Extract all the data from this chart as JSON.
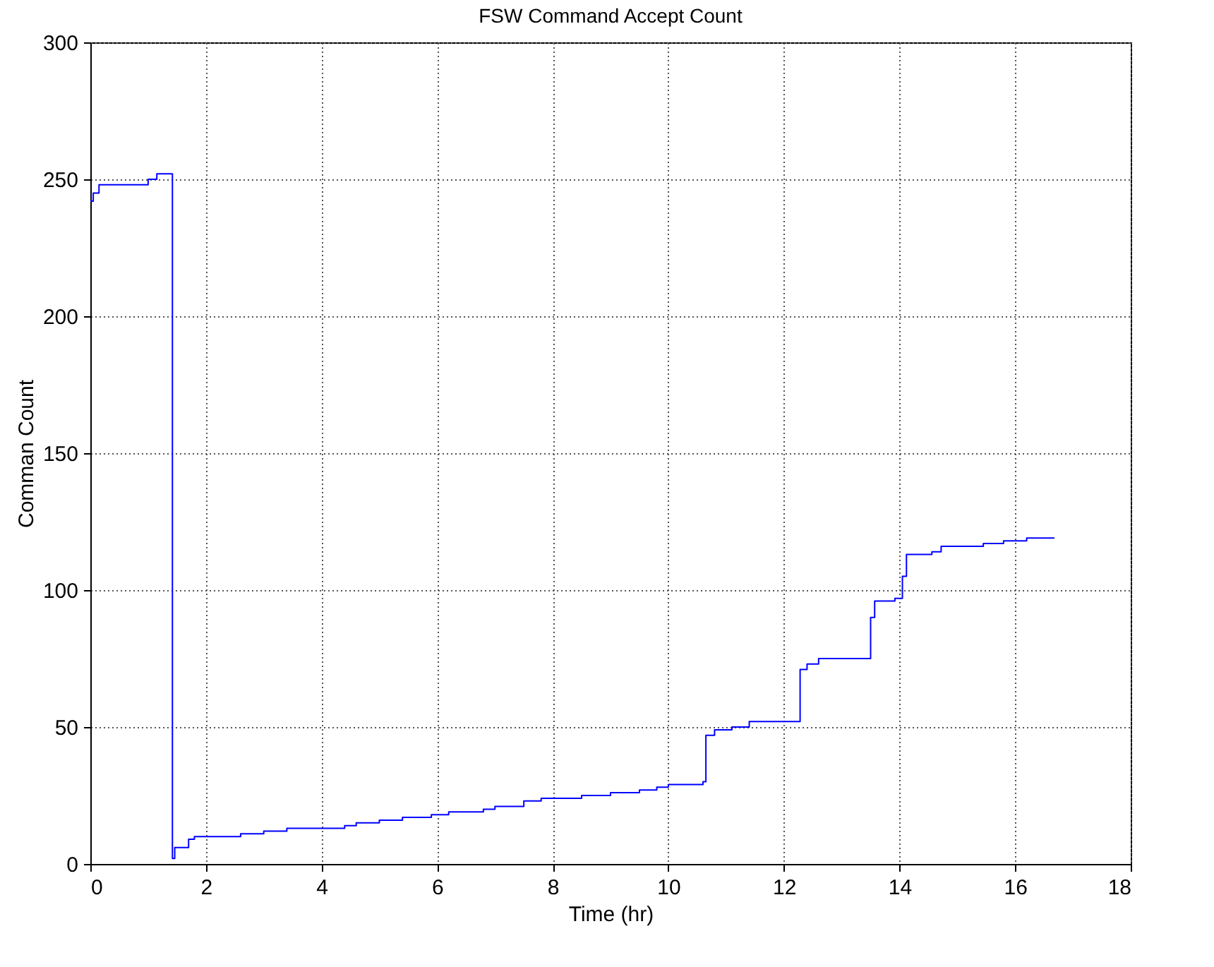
{
  "chart_data": {
    "type": "step",
    "title": "FSW Command Accept Count",
    "xlabel": "Time (hr)",
    "ylabel": "Comman Count",
    "x": [
      0,
      0.05,
      0.15,
      1.0,
      1.15,
      1.42,
      1.46,
      1.7,
      1.8,
      2.6,
      3.0,
      3.4,
      4.4,
      4.6,
      5.0,
      5.4,
      5.9,
      6.2,
      6.8,
      7.0,
      7.5,
      7.8,
      8.5,
      9.0,
      9.5,
      9.8,
      10.0,
      10.6,
      10.65,
      10.8,
      11.1,
      11.4,
      12.28,
      12.4,
      12.6,
      13.5,
      13.57,
      13.92,
      14.05,
      14.12,
      14.56,
      14.72,
      15.45,
      15.8,
      16.2,
      16.68
    ],
    "series": [
      {
        "color": "#0000ff",
        "values": [
          242,
          245,
          248,
          250,
          252,
          2,
          6,
          9,
          10,
          11,
          12,
          13,
          14,
          15,
          16,
          17,
          18,
          19,
          20,
          21,
          23,
          24,
          25,
          26,
          27,
          28,
          29,
          30,
          47,
          49,
          50,
          52,
          71,
          73,
          75,
          90,
          96,
          97,
          105,
          113,
          114,
          116,
          117,
          118,
          119,
          119
        ]
      }
    ],
    "xlim": [
      0,
      18
    ],
    "xticks": [
      0,
      2,
      4,
      6,
      8,
      10,
      12,
      14,
      16,
      18
    ],
    "ylim": [
      0,
      300
    ],
    "yticks": [
      0,
      50,
      100,
      150,
      200,
      250,
      300
    ],
    "grid": true
  }
}
